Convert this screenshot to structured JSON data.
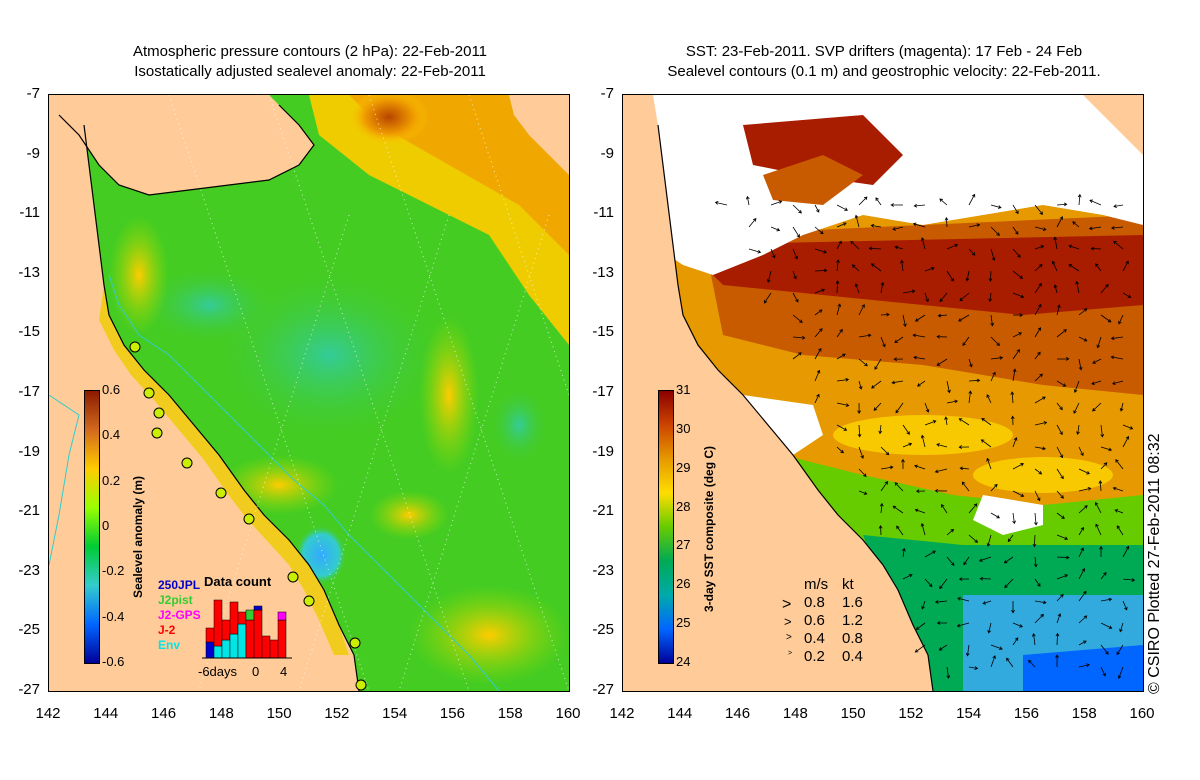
{
  "left_panel": {
    "title_line1": "Atmospheric pressure contours (2 hPa): 22-Feb-2011",
    "title_line2": "Isostatically adjusted sealevel anomaly: 22-Feb-2011",
    "colorbar": {
      "label": "Sealevel anomaly (m)",
      "ticks": [
        "0.6",
        "0.4",
        "0.2",
        "0",
        "-0.2",
        "-0.4",
        "-0.6"
      ],
      "colors": [
        "#8b1a00",
        "#d2691e",
        "#ffcc00",
        "#99ff00",
        "#00cc33",
        "#33cccc",
        "#0066ff",
        "#000099"
      ]
    },
    "data_count": {
      "title": "Data count",
      "sources": [
        {
          "label": "250JPL",
          "color": "#0000cc"
        },
        {
          "label": "J2pist",
          "color": "#33cc33"
        },
        {
          "label": "J2-GPS",
          "color": "#ff00ff"
        },
        {
          "label": "J-2",
          "color": "#ff0000"
        },
        {
          "label": "Env",
          "color": "#00e5e5"
        }
      ],
      "axis_labels": [
        "-6days",
        "0",
        "4"
      ]
    }
  },
  "right_panel": {
    "title_line1": "SST: 23-Feb-2011. SVP drifters (magenta): 17 Feb - 24 Feb",
    "title_line2": "Sealevel contours (0.1 m) and geostrophic velocity: 22-Feb-2011.",
    "colorbar": {
      "label": "3-day SST composite (deg C)",
      "ticks": [
        "31",
        "30",
        "29",
        "28",
        "27",
        "26",
        "25",
        "24"
      ],
      "colors": [
        "#8b0000",
        "#cc4400",
        "#e69900",
        "#ffdd00",
        "#66cc00",
        "#00aa55",
        "#00aaaa",
        "#0066ff",
        "#000099"
      ]
    },
    "velocity_legend": {
      "header": [
        "m/s",
        "kt"
      ],
      "rows": [
        [
          "0.8",
          "1.6"
        ],
        [
          "0.6",
          "1.2"
        ],
        [
          "0.4",
          "0.8"
        ],
        [
          "0.2",
          "0.4"
        ]
      ]
    }
  },
  "axes": {
    "lat_ticks": [
      "-7",
      "-9",
      "-11",
      "-13",
      "-15",
      "-17",
      "-19",
      "-21",
      "-23",
      "-25",
      "-27"
    ],
    "lon_ticks": [
      "142",
      "144",
      "146",
      "148",
      "150",
      "152",
      "154",
      "156",
      "158",
      "160"
    ]
  },
  "copyright": "© CSIRO Plotted 27-Feb-2011 08:32",
  "colors": {
    "land": "#ffcc99",
    "sea_green": "#44cc22",
    "sea_cyan": "#33cccc",
    "sst_hot": "#aa2200",
    "sst_mid": "#e69900"
  }
}
